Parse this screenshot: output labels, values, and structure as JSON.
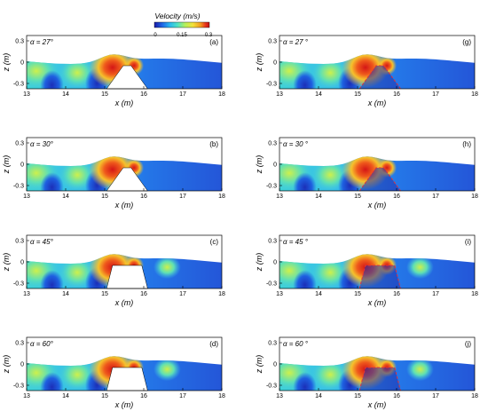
{
  "figure": {
    "legend": {
      "title": "Velocity (m/s)",
      "ticks": [
        "0",
        "0.15",
        "0.3"
      ],
      "colors": [
        "#1a1aa6",
        "#1e64e6",
        "#2ab7f0",
        "#4fe3c4",
        "#b6f05a",
        "#f3e23a",
        "#f39a1e",
        "#e8341e",
        "#c41212"
      ]
    },
    "axes_common": {
      "xlabel": "x (m)",
      "ylabel": "z (m)",
      "xticks": [
        "13",
        "14",
        "15",
        "16",
        "17",
        "18"
      ],
      "yticks": [
        "0.3",
        "0",
        "-0.3"
      ]
    },
    "panels": [
      {
        "letter": "(a)",
        "alpha": "α = 27°",
        "obstacle": "white-trapezoid",
        "slope_deg": 27
      },
      {
        "letter": "(b)",
        "alpha": "α = 30°",
        "obstacle": "white-trapezoid",
        "slope_deg": 30
      },
      {
        "letter": "(c)",
        "alpha": "α = 45°",
        "obstacle": "white-trapezoid",
        "slope_deg": 45
      },
      {
        "letter": "(d)",
        "alpha": "α = 60°",
        "obstacle": "white-trapezoid",
        "slope_deg": 60
      },
      {
        "letter": "(g)",
        "alpha": "α = 27 °",
        "obstacle": "porous-dashed",
        "slope_deg": 27
      },
      {
        "letter": "(h)",
        "alpha": "α = 30 °",
        "obstacle": "porous-dashed",
        "slope_deg": 30
      },
      {
        "letter": "(i)",
        "alpha": "α = 45 °",
        "obstacle": "porous-dashed",
        "slope_deg": 45
      },
      {
        "letter": "(j)",
        "alpha": "α = 60 °",
        "obstacle": "porous-dashed",
        "slope_deg": 60
      }
    ]
  }
}
